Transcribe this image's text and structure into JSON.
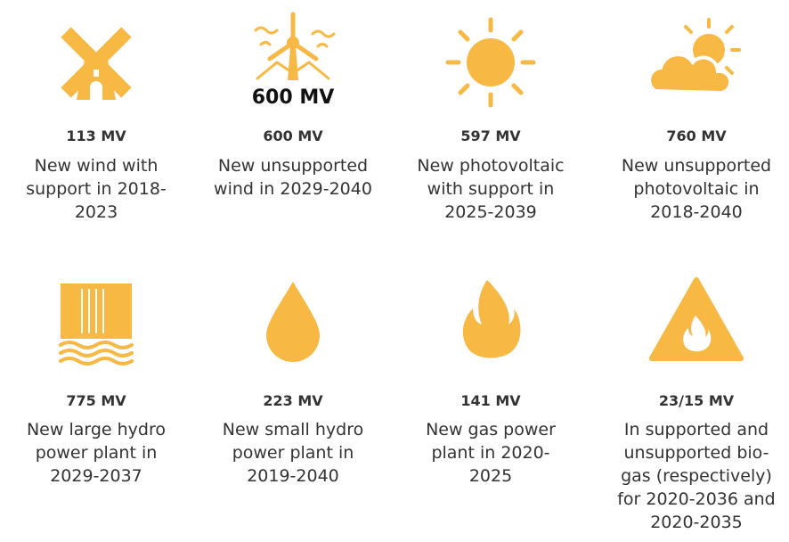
{
  "items": [
    {
      "value": "113 MV",
      "description": [
        "New wind with",
        "support in 2018-",
        "2023"
      ]
    },
    {
      "icon_text": "600 MV",
      "value": "600 MV",
      "description": [
        "New unsupported",
        "wind in 2029-2040"
      ]
    },
    {
      "value": "597 MV",
      "description": [
        "New photovoltaic",
        "with support in",
        "2025-2039"
      ]
    },
    {
      "value": "760 MV",
      "description": [
        "New unsupported",
        "photovoltaic in",
        "2018-2040"
      ]
    },
    {
      "value": "775 MV",
      "description": [
        "New large hydro",
        "power plant in",
        "2029-2037"
      ]
    },
    {
      "value": "223 MV",
      "description": [
        "New small hydro",
        "power plant in",
        "2019-2040"
      ]
    },
    {
      "value": "141 MV",
      "description": [
        "New gas power",
        "plant in 2020-",
        "2025"
      ]
    },
    {
      "value": "23/15 MV",
      "description": [
        "In supported and",
        "unsupported bio-",
        "gas (respectively)",
        "for 2020-2036 and",
        "2020-2035"
      ]
    }
  ]
}
